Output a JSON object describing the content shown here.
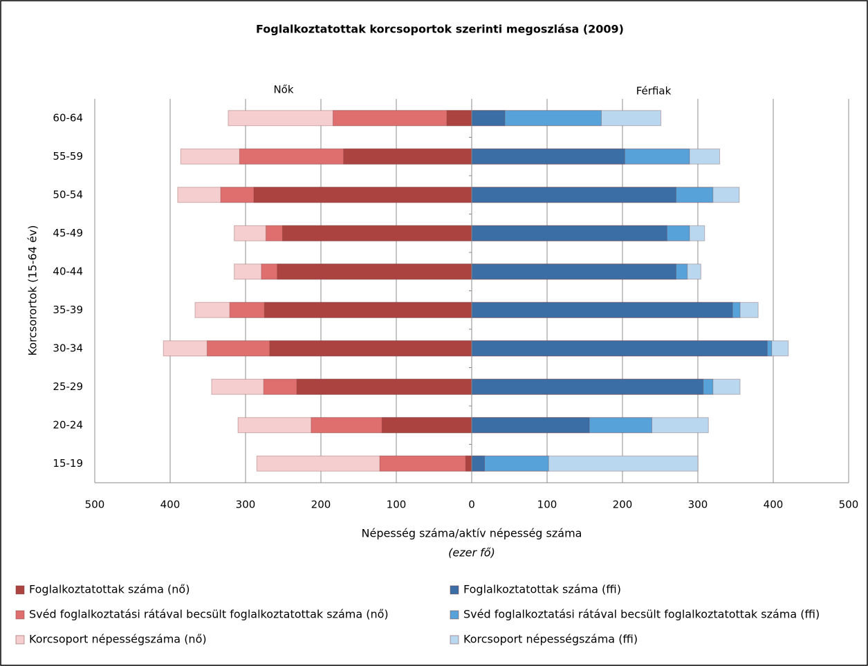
{
  "chart_data": {
    "type": "bar",
    "orientation": "horizontal",
    "overlap": true,
    "title": "Foglalkoztatottak korcsoportok szerinti megoszlása (2009)",
    "side_labels": [
      "Nők",
      "Férfiak"
    ],
    "y_label": "Korcsorortok (15-64 év)",
    "x_label": "Népesség száma/aktív népesség száma",
    "x_unit": "(ezer fő)",
    "categories": [
      "60-64",
      "55-59",
      "50-54",
      "45-49",
      "40-44",
      "35-39",
      "30-34",
      "25-29",
      "20-24",
      "15-19"
    ],
    "series": [
      {
        "name": "Foglalkoztatottak száma (nő)",
        "color": "#ab4341",
        "values": [
          -33,
          -170,
          -289,
          -251,
          -258,
          -275,
          -268,
          -232,
          -119,
          -8
        ]
      },
      {
        "name": "Svéd foglalkoztatási rátával becsült foglalkoztatottak száma (nő)",
        "color": "#df6f6e",
        "values": [
          -184,
          -308,
          -333,
          -273,
          -279,
          -321,
          -351,
          -276,
          -213,
          -122
        ]
      },
      {
        "name": "Korcsoport népességszáma (nő)",
        "color": "#f5cfd0",
        "values": [
          -323,
          -386,
          -390,
          -315,
          -315,
          -367,
          -409,
          -345,
          -310,
          -285
        ]
      },
      {
        "name": "Foglalkoztatottak száma (ffi)",
        "color": "#3c6ea6",
        "values": [
          44,
          203,
          271,
          259,
          271,
          346,
          392,
          307,
          156,
          17
        ]
      },
      {
        "name": "Svéd foglalkoztatási rátával becsült foglalkoztatottak száma (ffi)",
        "color": "#57a2d8",
        "values": [
          172,
          289,
          320,
          289,
          286,
          356,
          398,
          320,
          239,
          102
        ]
      },
      {
        "name": "Korcsoport népességszáma (ffi)",
        "color": "#b9d7ef",
        "values": [
          251,
          329,
          355,
          309,
          304,
          380,
          420,
          356,
          314,
          300
        ]
      }
    ],
    "xlim": [
      -500,
      500
    ],
    "xticks": [
      {
        "value": -500,
        "label": "500"
      },
      {
        "value": -400,
        "label": "400"
      },
      {
        "value": -300,
        "label": "300"
      },
      {
        "value": -200,
        "label": "200"
      },
      {
        "value": -100,
        "label": "100"
      },
      0,
      100,
      200,
      300,
      400,
      500
    ],
    "grid": true
  }
}
